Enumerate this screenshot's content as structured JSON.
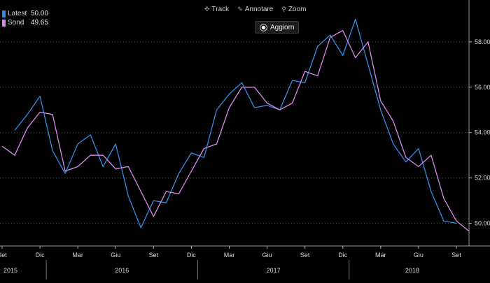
{
  "toolbar": {
    "track_label": "Track",
    "annotate_label": "Annotare",
    "zoom_label": "Zoom",
    "update_label": "Aggiorn"
  },
  "legend": {
    "items": [
      {
        "name": "Latest",
        "value": "50.00",
        "color": "#2f8fe8"
      },
      {
        "name": "Sond",
        "value": "49.65",
        "color": "#d88ae8"
      }
    ]
  },
  "chart_data": {
    "type": "line",
    "x": [
      "2015-09",
      "2015-10",
      "2015-11",
      "2015-12",
      "2016-01",
      "2016-02",
      "2016-03",
      "2016-04",
      "2016-05",
      "2016-06",
      "2016-07",
      "2016-08",
      "2016-09",
      "2016-10",
      "2016-11",
      "2016-12",
      "2017-01",
      "2017-02",
      "2017-03",
      "2017-04",
      "2017-05",
      "2017-06",
      "2017-07",
      "2017-08",
      "2017-09",
      "2017-10",
      "2017-11",
      "2017-12",
      "2018-01",
      "2018-02",
      "2018-03",
      "2018-04",
      "2018-05",
      "2018-06",
      "2018-07",
      "2018-08",
      "2018-09",
      "2018-10"
    ],
    "series": [
      {
        "name": "Latest",
        "color": "#2f8fe8",
        "values": [
          null,
          54.1,
          54.8,
          55.6,
          53.2,
          52.2,
          53.5,
          53.9,
          52.5,
          53.5,
          51.2,
          49.8,
          51.0,
          50.9,
          52.2,
          53.1,
          52.9,
          55.0,
          55.7,
          56.2,
          55.1,
          55.2,
          55.0,
          56.3,
          56.2,
          57.8,
          58.3,
          57.4,
          59.0,
          57.0,
          55.0,
          53.5,
          52.7,
          53.3,
          51.4,
          50.1,
          50.0,
          null
        ]
      },
      {
        "name": "Sond",
        "color": "#d88ae8",
        "values": [
          53.4,
          53.0,
          54.2,
          54.9,
          54.8,
          52.3,
          52.5,
          53.0,
          53.0,
          52.4,
          52.5,
          51.4,
          50.3,
          51.4,
          51.3,
          52.3,
          53.3,
          53.5,
          55.1,
          56.0,
          56.0,
          55.3,
          55.0,
          55.3,
          56.7,
          56.5,
          58.2,
          58.5,
          57.3,
          58.0,
          55.4,
          54.5,
          52.9,
          52.5,
          53.0,
          51.1,
          50.1,
          49.65
        ]
      }
    ],
    "x_tick_labels": [
      "Set",
      "Dic",
      "Mar",
      "Giu",
      "Set",
      "Dic",
      "Mar",
      "Giu",
      "Set",
      "Dic",
      "Mar",
      "Giu",
      "Set"
    ],
    "year_labels": [
      "2015",
      "2016",
      "2017",
      "2018"
    ],
    "y_tick_labels": [
      "50.00",
      "52.00",
      "54.00",
      "56.00",
      "58.00"
    ],
    "ylim": [
      49.0,
      59.6
    ],
    "y_axis_side": "right",
    "grid": "horizontal-dotted",
    "legend_position": "top-left"
  }
}
